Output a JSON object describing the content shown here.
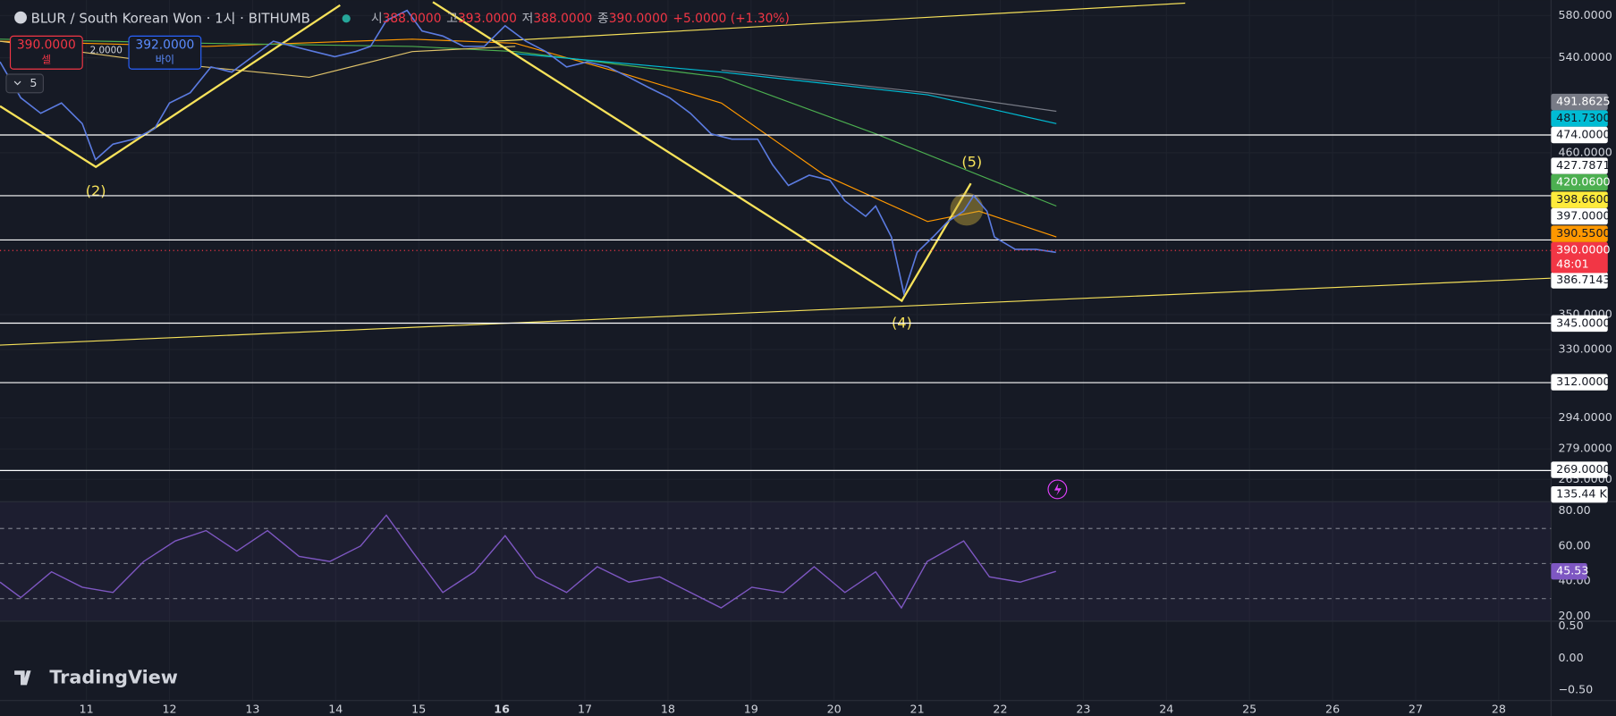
{
  "header": {
    "symbol": "BLUR / South Korean Won · 1시 · BITHUMB",
    "ohlc": [
      {
        "label": "시",
        "value": "388.0000"
      },
      {
        "label": "고",
        "value": "393.0000"
      },
      {
        "label": "저",
        "value": "388.0000"
      },
      {
        "label": "종",
        "value": "390.0000"
      }
    ],
    "change": "+5.0000 (+1.30%)"
  },
  "trade": {
    "sell_price": "390.0000",
    "sell_label": "셀",
    "quantity": "2.0000",
    "buy_price": "392.0000",
    "buy_label": "바이"
  },
  "indicator_count": "5",
  "wave_labels": [
    "(2)",
    "(4)",
    "(5)"
  ],
  "brand": "TradingView",
  "chart_data": {
    "type": "line",
    "log_scale": true,
    "grid": true,
    "color": "#5b7be0",
    "x": [
      9.96,
      10.21,
      10.45,
      10.7,
      10.95,
      11.11,
      11.32,
      11.57,
      11.82,
      12.0,
      12.25,
      12.5,
      12.75,
      13.0,
      13.25,
      13.49,
      13.74,
      13.99,
      14.24,
      14.42,
      14.61,
      14.86,
      15.04,
      15.29,
      15.54,
      15.79,
      16.04,
      16.29,
      16.53,
      16.78,
      17.03,
      17.28,
      17.53,
      17.77,
      18.02,
      18.27,
      18.52,
      18.77,
      19.08,
      19.26,
      19.45,
      19.7,
      19.95,
      20.13,
      20.38,
      20.5,
      20.69,
      20.84,
      21.0,
      21.19,
      21.37,
      21.56,
      21.68,
      21.84,
      21.93,
      22.18,
      22.43,
      22.67
    ],
    "values": [
      536.3,
      504.7,
      491.7,
      500.3,
      483.2,
      454.7,
      466.7,
      470.7,
      479.0,
      500.3,
      509.1,
      531.7,
      527.1,
      541.0,
      555.3,
      550.5,
      545.7,
      541.0,
      545.7,
      550.5,
      575.0,
      585.0,
      565.0,
      560.2,
      550.5,
      550.5,
      570.0,
      555.3,
      545.7,
      531.7,
      536.3,
      531.7,
      522.5,
      513.5,
      504.7,
      491.7,
      474.9,
      470.7,
      470.7,
      450.7,
      435.3,
      442.9,
      439.1,
      424.1,
      413.2,
      420.4,
      399.0,
      362.7,
      388.8,
      399.0,
      409.6,
      416.8,
      427.8,
      416.8,
      399.0,
      390.8,
      390.8,
      388.8
    ],
    "xlim": [
      9.96,
      28.63
    ],
    "xticks": [
      11,
      12,
      13,
      14,
      15,
      16,
      17,
      18,
      19,
      20,
      21,
      22,
      23,
      24,
      25,
      26,
      27,
      28
    ],
    "ylim": [
      255.2,
      595.3
    ],
    "yticks": [
      {
        "value": 580,
        "label": "580.0000"
      },
      {
        "value": 540,
        "label": "540.0000"
      },
      {
        "value": 460,
        "label": "460.0000"
      },
      {
        "value": 350,
        "label": "350.0000"
      },
      {
        "value": 330,
        "label": "330.0000"
      },
      {
        "value": 294,
        "label": "294.0000"
      },
      {
        "value": 279,
        "label": "279.0000"
      },
      {
        "value": 265,
        "label": "265.0000"
      }
    ],
    "levels": [
      474,
      427.7871,
      397,
      345,
      312,
      269
    ],
    "level_color": "#ffffff",
    "current_price": {
      "value": 390,
      "label": "390.0000",
      "countdown": "48:01",
      "color": "#f23645"
    },
    "axis_badges": [
      {
        "label": "491.8625",
        "bg": "#787b86",
        "fg": "#ffffff"
      },
      {
        "label": "481.7300",
        "bg": "#00bcd4",
        "fg": "#131722"
      },
      {
        "label": "474.0000",
        "bg": "#ffffff",
        "fg": "#131722"
      },
      {
        "label": "427.7871",
        "bg": "#ffffff",
        "fg": "#131722"
      },
      {
        "label": "420.0600",
        "bg": "#4caf50",
        "fg": "#ffffff"
      },
      {
        "label": "398.6600",
        "bg": "#ffeb3b",
        "fg": "#131722"
      },
      {
        "label": "397.0000",
        "bg": "#ffffff",
        "fg": "#131722"
      },
      {
        "label": "390.5500",
        "bg": "#ff9800",
        "fg": "#131722"
      },
      {
        "label": "386.7143",
        "bg": "#ffffff",
        "fg": "#131722"
      },
      {
        "label": "345.0000",
        "bg": "#ffffff",
        "fg": "#131722"
      },
      {
        "label": "312.0000",
        "bg": "#ffffff",
        "fg": "#131722"
      },
      {
        "label": "269.0000",
        "bg": "#ffffff",
        "fg": "#131722"
      },
      {
        "label": "135.44 K",
        "bg": "#ffffff",
        "fg": "#131722"
      }
    ],
    "rsi": {
      "color": "#7e57c2",
      "x": [
        9.96,
        10.21,
        10.58,
        10.95,
        11.32,
        11.69,
        12.07,
        12.44,
        12.81,
        13.18,
        13.56,
        13.93,
        14.3,
        14.61,
        14.92,
        15.29,
        15.67,
        16.04,
        16.41,
        16.78,
        17.15,
        17.53,
        17.9,
        18.27,
        18.64,
        19.01,
        19.39,
        19.76,
        20.13,
        20.5,
        20.81,
        21.12,
        21.56,
        21.87,
        22.24,
        22.67
      ],
      "values": [
        39.4,
        30.6,
        45.3,
        36.5,
        33.5,
        51.2,
        62.9,
        68.8,
        57.1,
        68.8,
        54.1,
        51.2,
        60.0,
        77.6,
        57.1,
        33.5,
        45.3,
        65.9,
        42.4,
        33.5,
        48.2,
        39.4,
        42.4,
        33.5,
        24.7,
        36.5,
        33.5,
        48.2,
        33.5,
        45.3,
        24.7,
        51.2,
        62.9,
        42.4,
        39.4,
        45.53
      ],
      "value_label": "45.53",
      "ylim": [
        17.1,
        85.3
      ],
      "yticks": [
        {
          "value": 80,
          "label": "80.00"
        },
        {
          "value": 60,
          "label": "60.00"
        },
        {
          "value": 40,
          "label": "40.00"
        },
        {
          "value": 20,
          "label": "20.00"
        }
      ],
      "bands": [
        70,
        50,
        30
      ]
    },
    "lower_pane": {
      "ylim": [
        -0.66,
        0.58
      ],
      "yticks": [
        {
          "value": 0.5,
          "label": "0.50"
        },
        {
          "value": 0,
          "label": "0.00"
        },
        {
          "value": -0.5,
          "label": "−0.50"
        }
      ]
    }
  }
}
